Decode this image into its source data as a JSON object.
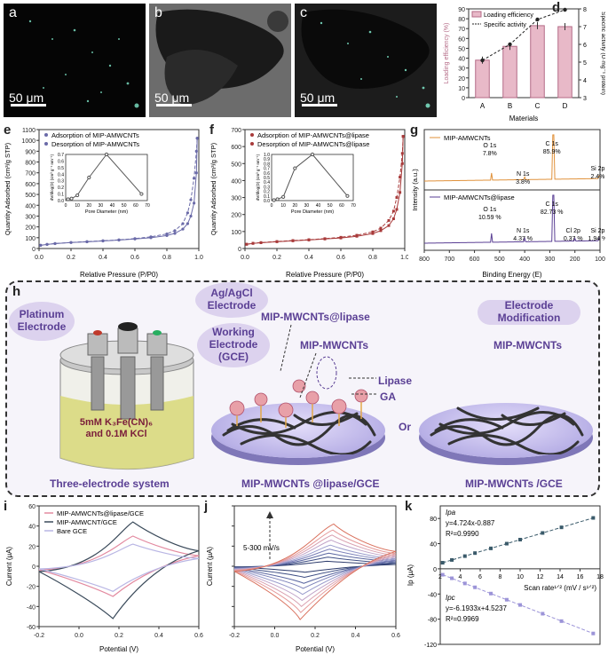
{
  "panels": {
    "a": "a",
    "b": "b",
    "c": "c",
    "d": "d",
    "e": "e",
    "f": "f",
    "g": "g",
    "h": "h",
    "i": "i",
    "j": "j",
    "k": "k"
  },
  "micrographs": {
    "scale_text": "50 μm"
  },
  "panel_d": {
    "legend_bar": "Loading efficiency",
    "legend_line": "Specific activity",
    "xlabel": "Materials",
    "ylabel_left": "Loading efficiency (%)",
    "ylabel_right": "Specific activity (U·mg⁻¹ protein)",
    "colors": {
      "bar": "#e8b9c8",
      "bar_edge": "#b46a86",
      "line": "#222222"
    }
  },
  "panel_e": {
    "legend_ads": "Adsorption of MIP-AMWCNTs",
    "legend_des": "Desorption of MIP-AMWCNTs",
    "xlabel": "Relative Pressure (P/P0)",
    "ylabel": "Quantity Adsorbed (cm³/g STP)",
    "inset_xlabel": "Pore Diameter (nm)",
    "inset_ylabel": "dV/dlog(D) (cm³ g⁻¹ nm⁻¹)",
    "colors": {
      "line": "#6a6aa8"
    }
  },
  "panel_f": {
    "legend_ads": "Adsorption of MIP-AMWCNTs@lipase",
    "legend_des": "Desorption of MIP-AMWCNTs@lipase",
    "xlabel": "Relative Pressure (P/P0)",
    "ylabel": "Quantity Adsorbed (cm³/g STP)",
    "inset_xlabel": "Pore Diameter (nm)",
    "inset_ylabel": "dV/dlog(D) (cm³ g⁻¹ nm⁻¹)",
    "colors": {
      "line": "#a83a3a"
    }
  },
  "panel_g": {
    "top_label": "MIP-AMWCNTs",
    "bottom_label": "MIP-AMWCNTs@lipase",
    "xlabel": "Binding Energy (E)",
    "ylabel": "Intensity (a.u.)",
    "top_peaks": [
      {
        "name": "O 1s",
        "pct": "7.8%"
      },
      {
        "name": "N 1s",
        "pct": "3.8%"
      },
      {
        "name": "C 1s",
        "pct": "85.9%"
      },
      {
        "name": "Si 2p",
        "pct": "2.4%"
      }
    ],
    "bottom_peaks": [
      {
        "name": "O 1s",
        "pct": "10.59 %"
      },
      {
        "name": "N 1s",
        "pct": "4.37 %"
      },
      {
        "name": "C 1s",
        "pct": "82.73 %"
      },
      {
        "name": "Cl 2p",
        "pct": "0.37 %"
      },
      {
        "name": "Si 2p",
        "pct": "1.94 %"
      }
    ],
    "colors": {
      "top": "#e0913a",
      "bottom": "#5a3f94"
    }
  },
  "schematic": {
    "platinum": "Platinum Electrode",
    "agcl": "Ag/AgCl Electrode",
    "working": "Working Electrode (GCE)",
    "solution": "5mM K₃Fe(CN)₆ and 0.1M KCl",
    "three_electrode": "Three-electrode system",
    "mip_lipase": "MIP-MWCNTs@lipase",
    "mip": "MIP-MWCNTs",
    "lipase": "Lipase",
    "ga": "GA",
    "or": "Or",
    "electrode_mod": "Electrode Modification",
    "mip_right": "MIP-MWCNTs",
    "caption_mid": "MIP-MWCNTs @lipase/GCE",
    "caption_right": "MIP-MWCNTs /GCE"
  },
  "panel_i": {
    "legend": [
      "MIP-AMWCNTs@lipase/GCE",
      "MIP-AMWCNT/GCE",
      "Bare GCE"
    ],
    "xlabel": "Potential (V)",
    "ylabel": "Current (μA)",
    "colors": [
      "#e38aa0",
      "#3a4a5a",
      "#b9b6e4"
    ]
  },
  "panel_j": {
    "annotation": "5-300 mV/s",
    "xlabel": "Potential (V)",
    "ylabel": "Current (μA)"
  },
  "panel_k": {
    "ipa_label": "Ipa",
    "ipa_eq": "y=4.724x-0.887",
    "ipa_r2": "R²=0.9990",
    "ipc_label": "Ipc",
    "ipc_eq": "y=-6.1933x+4.5237",
    "ipc_r2": "R²=0.9969",
    "xlabel": "Scan rate¹ᐟ² (mV / s¹ᐟ²)",
    "ylabel": "Ip (μA)",
    "colors": {
      "ipa": "#3a5a6a",
      "ipc": "#9c94d8"
    }
  },
  "chart_data": [
    {
      "id": "d",
      "type": "bar",
      "categories": [
        "A",
        "B",
        "C",
        "D"
      ],
      "series": [
        {
          "name": "Loading efficiency",
          "values": [
            38,
            52,
            73,
            72
          ]
        },
        {
          "name": "Specific activity",
          "values": [
            5.1,
            6.0,
            7.4,
            7.95
          ]
        }
      ],
      "xlabel": "Materials",
      "ylabel": "Loading efficiency (%)",
      "ylim": [
        0,
        90
      ],
      "y2label": "Specific activity (U·mg⁻¹ protein)",
      "y2lim": [
        3,
        8
      ],
      "yticks": [
        0,
        10,
        20,
        30,
        40,
        50,
        60,
        70,
        80,
        90
      ],
      "y2ticks": [
        3,
        4,
        5,
        6,
        7,
        8
      ]
    },
    {
      "id": "e",
      "type": "line",
      "x": [
        0.01,
        0.05,
        0.1,
        0.2,
        0.3,
        0.4,
        0.5,
        0.6,
        0.7,
        0.8,
        0.85,
        0.9,
        0.93,
        0.95,
        0.97,
        0.985,
        0.99
      ],
      "series": [
        {
          "name": "Adsorption of MIP-AMWCNTs",
          "values": [
            30,
            38,
            45,
            55,
            62,
            70,
            78,
            88,
            100,
            120,
            140,
            180,
            230,
            300,
            420,
            700,
            1020
          ]
        },
        {
          "name": "Desorption of MIP-AMWCNTs",
          "values": [
            30,
            38,
            46,
            56,
            64,
            72,
            80,
            92,
            108,
            135,
            165,
            230,
            330,
            450,
            650,
            900,
            1020
          ]
        }
      ],
      "xlabel": "Relative Pressure (P/P0)",
      "ylabel": "Quantity Adsorbed (cm³/g STP)",
      "xlim": [
        0,
        1.0
      ],
      "ylim": [
        0,
        1100
      ],
      "xticks": [
        0.0,
        0.2,
        0.4,
        0.6,
        0.8,
        1.0
      ],
      "yticks": [
        0,
        100,
        200,
        300,
        400,
        500,
        600,
        700,
        800,
        900,
        1000,
        1100
      ],
      "inset": {
        "x": [
          2,
          5,
          10,
          20,
          35,
          65
        ],
        "y": [
          0.02,
          0.03,
          0.08,
          0.35,
          0.7,
          0.1
        ],
        "xticks": [
          0,
          10,
          20,
          30,
          40,
          50,
          60,
          70
        ],
        "yticks": [
          0.0,
          0.1,
          0.2,
          0.3,
          0.4,
          0.5,
          0.6,
          0.7
        ]
      }
    },
    {
      "id": "f",
      "type": "line",
      "x": [
        0.01,
        0.05,
        0.1,
        0.2,
        0.3,
        0.4,
        0.5,
        0.6,
        0.7,
        0.8,
        0.85,
        0.9,
        0.93,
        0.95,
        0.97,
        0.985,
        0.99
      ],
      "series": [
        {
          "name": "Adsorption of MIP-AMWCNTs@lipase",
          "values": [
            25,
            30,
            34,
            40,
            45,
            50,
            56,
            62,
            72,
            88,
            105,
            135,
            175,
            230,
            330,
            500,
            660
          ]
        },
        {
          "name": "Desorption of MIP-AMWCNTs@lipase",
          "values": [
            25,
            31,
            35,
            41,
            47,
            52,
            58,
            66,
            78,
            98,
            120,
            165,
            220,
            300,
            420,
            560,
            660
          ]
        }
      ],
      "xlabel": "Relative Pressure (P/P0)",
      "ylabel": "Quantity Adsorbed (cm³/g STP)",
      "xlim": [
        0,
        1.0
      ],
      "ylim": [
        0,
        700
      ],
      "xticks": [
        0.0,
        0.2,
        0.4,
        0.6,
        0.8,
        1.0
      ],
      "yticks": [
        0,
        100,
        200,
        300,
        400,
        500,
        600,
        700
      ],
      "inset": {
        "x": [
          2,
          5,
          10,
          20,
          35,
          65
        ],
        "y": [
          0.01,
          0.03,
          0.08,
          0.7,
          1.0,
          0.1
        ],
        "xticks": [
          0,
          10,
          20,
          30,
          40,
          50,
          60,
          70
        ],
        "yticks": [
          0.0,
          0.1,
          0.2,
          0.3,
          0.4,
          0.5,
          0.6,
          0.7,
          0.8,
          0.9,
          1.0
        ]
      }
    },
    {
      "id": "g",
      "type": "line",
      "xlabel": "Binding Energy (E)",
      "xlim": [
        800,
        100
      ],
      "xticks": [
        800,
        700,
        600,
        500,
        400,
        300,
        200,
        100
      ],
      "series": [
        {
          "name": "MIP-AMWCNTs",
          "peaks": [
            532,
            400,
            285,
            102
          ]
        },
        {
          "name": "MIP-AMWCNTs@lipase",
          "peaks": [
            532,
            400,
            285,
            200,
            102
          ]
        }
      ]
    },
    {
      "id": "i",
      "type": "line",
      "xlabel": "Potential (V)",
      "ylabel": "Current (μA)",
      "xlim": [
        -0.2,
        0.6
      ],
      "ylim": [
        -60,
        60
      ],
      "xticks": [
        -0.2,
        0.0,
        0.2,
        0.4,
        0.6
      ],
      "yticks": [
        -60,
        -40,
        -20,
        0,
        20,
        40,
        60
      ],
      "series": [
        {
          "name": "MIP-AMWCNTs@lipase/GCE",
          "anodic_peak": [
            0.27,
            30
          ],
          "cathodic_peak": [
            0.17,
            -30
          ]
        },
        {
          "name": "MIP-AMWCNT/GCE",
          "anodic_peak": [
            0.27,
            44
          ],
          "cathodic_peak": [
            0.17,
            -52
          ]
        },
        {
          "name": "Bare GCE",
          "anodic_peak": [
            0.27,
            22
          ],
          "cathodic_peak": [
            0.17,
            -25
          ]
        }
      ]
    },
    {
      "id": "j",
      "type": "line",
      "xlabel": "Potential (V)",
      "ylabel": "Current (μA)",
      "xlim": [
        -0.2,
        0.6
      ],
      "ylim": [
        -120,
        120
      ],
      "xticks": [
        -0.2,
        0.0,
        0.2,
        0.4,
        0.6
      ],
      "yticks": [
        -120,
        -80,
        -40,
        0,
        40,
        80,
        120
      ],
      "series_count": 9,
      "anodic_peaks": [
        10,
        18,
        26,
        34,
        42,
        52,
        62,
        72,
        84
      ],
      "cathodic_peaks": [
        -12,
        -22,
        -34,
        -44,
        -56,
        -68,
        -80,
        -92,
        -106
      ]
    },
    {
      "id": "k",
      "type": "scatter",
      "xlabel": "Scan rate¹ᐟ² (mV / s¹ᐟ²)",
      "ylabel": "Ip (μA)",
      "xlim": [
        2,
        18
      ],
      "ylim": [
        -120,
        100
      ],
      "xticks": [
        2,
        4,
        6,
        8,
        10,
        12,
        14,
        16,
        18
      ],
      "yticks": [
        -120,
        -100,
        -80,
        -60,
        -40,
        -20,
        0,
        20,
        40,
        60,
        80,
        100
      ],
      "x": [
        2.24,
        3.16,
        4.47,
        5.48,
        7.07,
        8.66,
        10.0,
        12.25,
        14.14,
        17.32
      ],
      "series": [
        {
          "name": "Ipa",
          "values": [
            9.7,
            14.1,
            20.2,
            25.0,
            32.5,
            40.0,
            46.4,
            57.0,
            65.9,
            80.9
          ]
        },
        {
          "name": "Ipc",
          "values": [
            -9.4,
            -15.0,
            -23.2,
            -29.4,
            -39.3,
            -49.1,
            -57.4,
            -71.3,
            -83.1,
            -102.7
          ]
        }
      ]
    }
  ]
}
